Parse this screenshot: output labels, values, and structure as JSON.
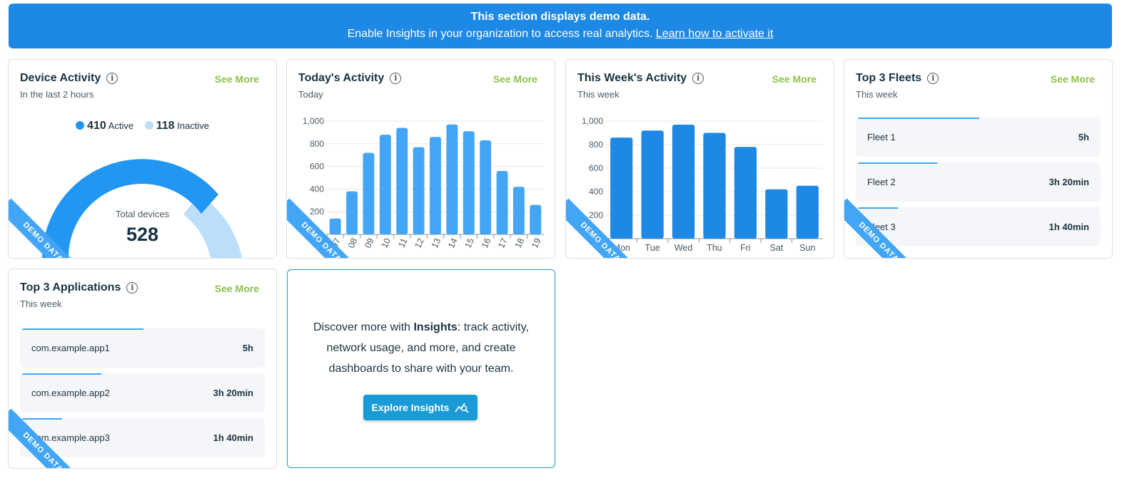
{
  "banner": {
    "line1": "This section displays demo data.",
    "line2": "Enable Insights in your organization to access real analytics.",
    "link": "Learn how to activate it"
  },
  "ribbon_label": "DEMO DATA",
  "see_more_label": "See More",
  "device_activity": {
    "title": "Device Activity",
    "subtitle": "In the last 2 hours",
    "active_count": "410",
    "active_label": "Active",
    "inactive_count": "118",
    "inactive_label": "Inactive",
    "total_label": "Total devices",
    "total_value": "528",
    "active_color": "#2196f3",
    "inactive_color": "#bbdefb"
  },
  "todays_activity": {
    "title": "Today's Activity",
    "subtitle": "Today",
    "chart_data": {
      "type": "bar",
      "categories": [
        "07",
        "08",
        "09",
        "10",
        "11",
        "12",
        "13",
        "14",
        "15",
        "16",
        "17",
        "18",
        "19"
      ],
      "values": [
        140,
        380,
        720,
        880,
        940,
        770,
        860,
        970,
        910,
        830,
        560,
        420,
        260
      ],
      "ylim": [
        0,
        1000
      ],
      "yticks": [
        "200",
        "400",
        "600",
        "800",
        "1,000"
      ],
      "color": "#42a5f5"
    }
  },
  "weeks_activity": {
    "title": "This Week's Activity",
    "subtitle": "This week",
    "chart_data": {
      "type": "bar",
      "categories": [
        "Mon",
        "Tue",
        "Wed",
        "Thu",
        "Fri",
        "Sat",
        "Sun"
      ],
      "values": [
        860,
        920,
        970,
        900,
        780,
        420,
        450
      ],
      "ylim": [
        0,
        1000
      ],
      "yticks": [
        "200",
        "400",
        "600",
        "800",
        "1,000"
      ],
      "color": "#1e88e5"
    }
  },
  "top_fleets": {
    "title": "Top 3 Fleets",
    "subtitle": "This week",
    "items": [
      {
        "name": "Fleet 1",
        "value": "5h",
        "share": 1.0
      },
      {
        "name": "Fleet 2",
        "value": "3h 20min",
        "share": 0.65
      },
      {
        "name": "Fleet 3",
        "value": "1h 40min",
        "share": 0.33
      }
    ]
  },
  "top_apps": {
    "title": "Top 3 Applications",
    "subtitle": "This week",
    "items": [
      {
        "name": "com.example.app1",
        "value": "5h",
        "share": 1.0
      },
      {
        "name": "com.example.app2",
        "value": "3h 20min",
        "share": 0.65
      },
      {
        "name": "com.example.app3",
        "value": "1h 40min",
        "share": 0.33
      }
    ]
  },
  "promo": {
    "text_before": "Discover more with ",
    "text_bold": "Insights",
    "text_after": ": track activity, network usage, and more, and create dashboards to share with your team.",
    "button": "Explore Insights"
  }
}
